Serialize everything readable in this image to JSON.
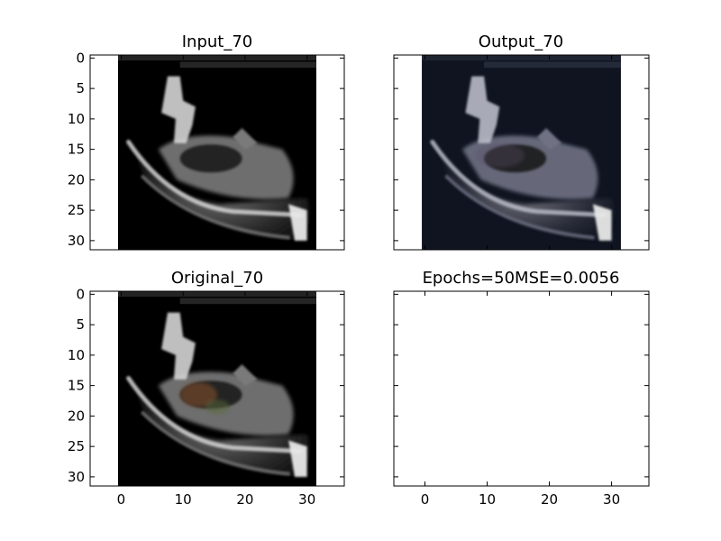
{
  "chart_data": [
    {
      "type": "image",
      "title": "Input_70",
      "xlim": [
        -5,
        36
      ],
      "ylim": [
        31.5,
        -0.5
      ],
      "x_ticks": [
        0,
        10,
        20,
        30
      ],
      "y_ticks": [
        0,
        5,
        10,
        15,
        20,
        25,
        30
      ],
      "x_tick_labels_shown": false,
      "y_tick_labels_shown": true,
      "image_extent": [
        -0.5,
        31.5,
        31.5,
        -0.5
      ],
      "image_tone": "grayscale"
    },
    {
      "type": "image",
      "title": "Output_70",
      "xlim": [
        -5,
        36
      ],
      "ylim": [
        31.5,
        -0.5
      ],
      "x_ticks": [
        0,
        10,
        20,
        30
      ],
      "y_ticks": [
        0,
        5,
        10,
        15,
        20,
        25,
        30
      ],
      "x_tick_labels_shown": false,
      "y_tick_labels_shown": false,
      "image_extent": [
        -0.5,
        31.5,
        31.5,
        -0.5
      ],
      "image_tone": "dark-navy"
    },
    {
      "type": "image",
      "title": "Original_70",
      "xlim": [
        -5,
        36
      ],
      "ylim": [
        31.5,
        -0.5
      ],
      "x_ticks": [
        0,
        10,
        20,
        30
      ],
      "y_ticks": [
        0,
        5,
        10,
        15,
        20,
        25,
        30
      ],
      "x_tick_labels_shown": true,
      "y_tick_labels_shown": true,
      "image_extent": [
        -0.5,
        31.5,
        31.5,
        -0.5
      ],
      "image_tone": "grayscale-with-color"
    },
    {
      "type": "empty",
      "title": "Epochs=50MSE=0.0056",
      "xlim": [
        -5,
        36
      ],
      "ylim": [
        31.5,
        -0.5
      ],
      "x_ticks": [
        0,
        10,
        20,
        30
      ],
      "y_ticks": [
        0,
        5,
        10,
        15,
        20,
        25,
        30
      ],
      "x_tick_labels_shown": true,
      "y_tick_labels_shown": false
    }
  ]
}
